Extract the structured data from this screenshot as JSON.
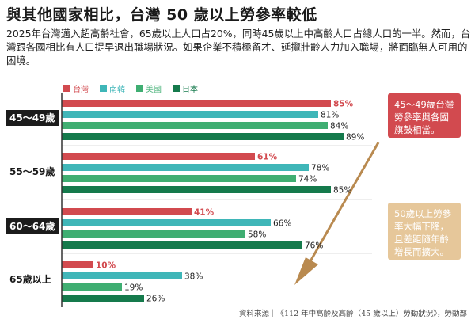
{
  "title": "與其他國家相比，台灣 50 歲以上勞參率較低",
  "description": "2025年台灣邁入超高齡社會，65歲以上人口占20%，同時45歲以上中高齡人口占總人口的一半。然而，台灣跟各國相比有人口提早退出職場狀況。如果企業不積極留才、延攬壯齡人力加入職場，將面臨無人可用的困境。",
  "callouts": {
    "top": "45～49歲台灣勞參率與各國旗鼓相當。",
    "bottom": "50歲以上勞參率大幅下降，且差距隨年齡增長而擴大。"
  },
  "source": "資料來源｜《112 年中高齡及高齡（45 歲以上）勞動狀況》，勞動部",
  "colors": {
    "taiwan": "#d24a4f",
    "korea": "#3fb6b8",
    "usa": "#3fae72",
    "japan": "#157a4c",
    "axis": "#333333"
  },
  "chart_data": {
    "type": "bar",
    "orientation": "horizontal",
    "categories": [
      "45～49歲",
      "55～59歲",
      "60～64歲",
      "65歲以上"
    ],
    "series": [
      {
        "name": "台灣",
        "values": [
          85,
          61,
          41,
          10
        ]
      },
      {
        "name": "南韓",
        "values": [
          81,
          78,
          66,
          38
        ]
      },
      {
        "name": "美國",
        "values": [
          84,
          74,
          58,
          19
        ]
      },
      {
        "name": "日本",
        "values": [
          89,
          85,
          76,
          26
        ]
      }
    ],
    "value_suffix": "%",
    "xlim": [
      0,
      100
    ],
    "legend": "top-left"
  }
}
